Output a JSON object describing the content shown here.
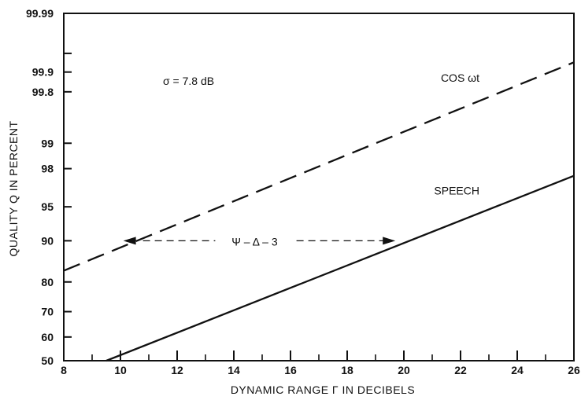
{
  "chart_data": {
    "type": "line",
    "title": "",
    "xlabel": "DYNAMIC RANGE Γ IN DECIBELS",
    "ylabel": "QUALITY Q IN PERCENT",
    "xlim": [
      8,
      26
    ],
    "x_ticks": [
      "8",
      "10",
      "12",
      "14",
      "16",
      "18",
      "20",
      "22",
      "24",
      "26"
    ],
    "y_scale": "probability",
    "y_ticks": [
      "50",
      "60",
      "70",
      "80",
      "90",
      "95",
      "98",
      "99",
      "99.8",
      "99.9",
      "99.99"
    ],
    "ylim": [
      50,
      99.99
    ],
    "grid": false,
    "series": [
      {
        "name": "COS ωt",
        "style": "dashed",
        "x": [
          8,
          26
        ],
        "y": [
          83.2,
          99.93
        ]
      },
      {
        "name": "SPEECH",
        "style": "solid",
        "x": [
          9.5,
          26
        ],
        "y": [
          50,
          97.6
        ]
      }
    ],
    "annotations": {
      "sigma": "σ = 7.8 dB",
      "offset": "Ψ – Δ – 3",
      "arrow_from_x": 10.1,
      "arrow_to_x": 19.7,
      "arrow_level_y": 90
    }
  }
}
